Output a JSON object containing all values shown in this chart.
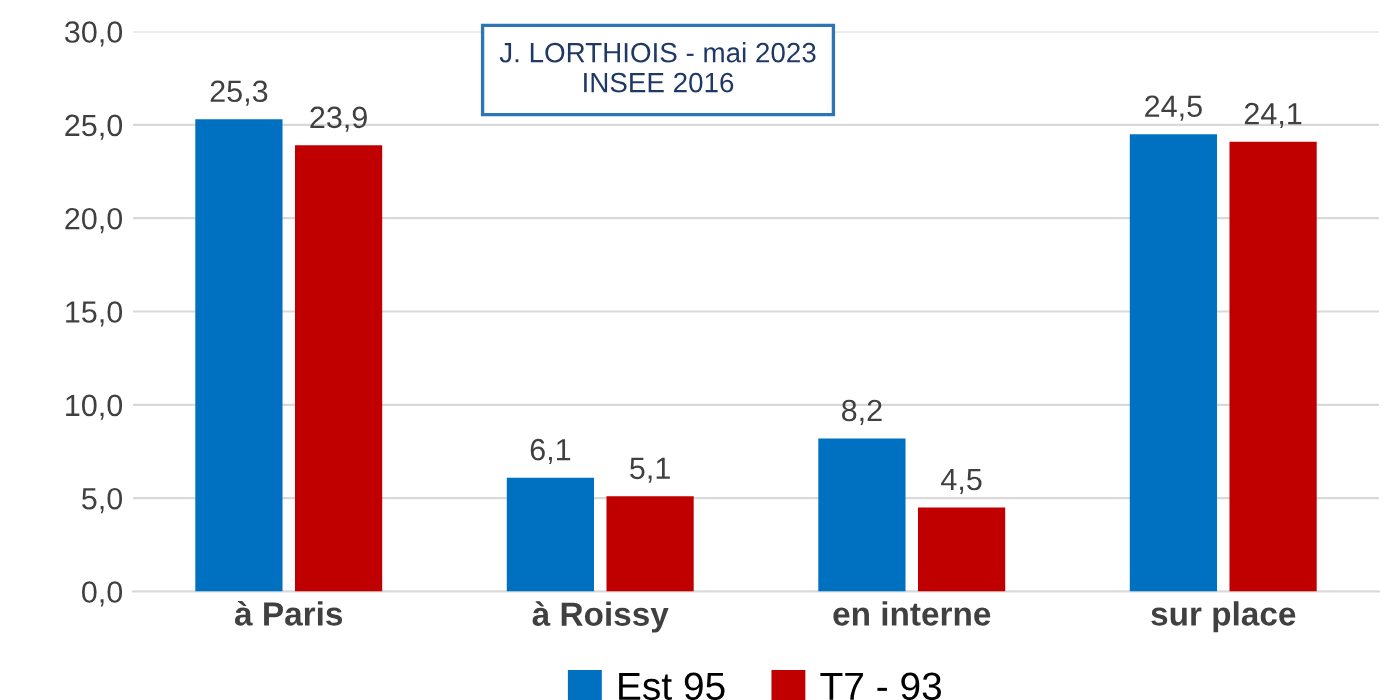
{
  "chart_data": {
    "type": "bar",
    "categories": [
      "à Paris",
      "à Roissy",
      "en interne",
      "sur place"
    ],
    "series": [
      {
        "name": "Est 95",
        "color": "#0070c0",
        "values": [
          25.3,
          6.1,
          8.2,
          24.5
        ],
        "value_labels": [
          "25,3",
          "6,1",
          "8,2",
          "24,5"
        ]
      },
      {
        "name": "T7 - 93",
        "color": "#c00000",
        "values": [
          23.9,
          5.1,
          4.5,
          24.1
        ],
        "value_labels": [
          "23,9",
          "5,1",
          "4,5",
          "24,1"
        ]
      }
    ],
    "ylim": [
      0,
      30
    ],
    "yticks": [
      {
        "value": 0,
        "label": "0,0"
      },
      {
        "value": 5,
        "label": "5,0"
      },
      {
        "value": 10,
        "label": "10,0"
      },
      {
        "value": 15,
        "label": "15,0"
      },
      {
        "value": 20,
        "label": "20,0"
      },
      {
        "value": 25,
        "label": "25,0"
      },
      {
        "value": 30,
        "label": "30,0"
      }
    ],
    "grid": "y",
    "legend": "bottom",
    "annotations": [
      "J. LORTHIOIS - mai 2023\nINSEE 2016"
    ]
  }
}
